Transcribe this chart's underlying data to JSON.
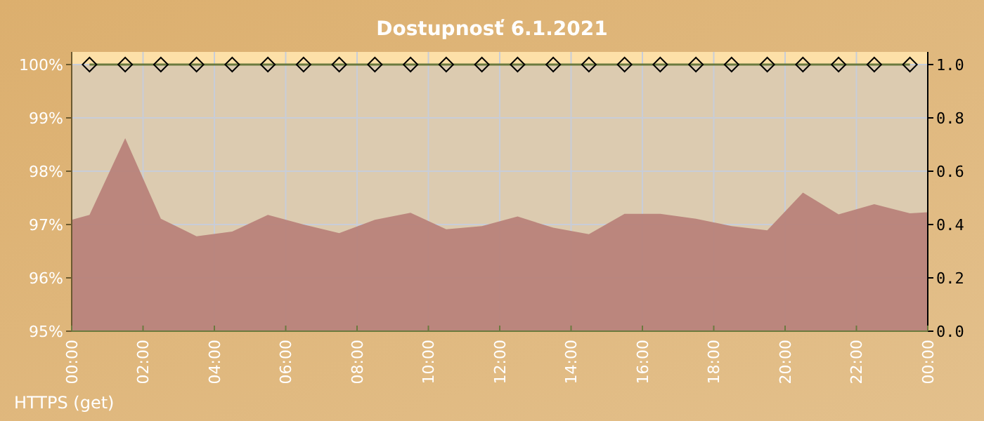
{
  "chart_data": {
    "type": "area",
    "title": "Dostupnosť 6.1.2021",
    "annotations": [
      "HTTPS (get)"
    ],
    "xlim": [
      0,
      24
    ],
    "xticks": [
      {
        "value": 0,
        "label": "00:00"
      },
      {
        "value": 2,
        "label": "02:00"
      },
      {
        "value": 4,
        "label": "04:00"
      },
      {
        "value": 6,
        "label": "06:00"
      },
      {
        "value": 8,
        "label": "08:00"
      },
      {
        "value": 10,
        "label": "10:00"
      },
      {
        "value": 12,
        "label": "12:00"
      },
      {
        "value": 14,
        "label": "14:00"
      },
      {
        "value": 16,
        "label": "16:00"
      },
      {
        "value": 18,
        "label": "18:00"
      },
      {
        "value": 20,
        "label": "20:00"
      },
      {
        "value": 22,
        "label": "22:00"
      },
      {
        "value": 24,
        "label": "00:00"
      }
    ],
    "ylim": [
      95,
      100
    ],
    "yticks": [
      {
        "value": 95,
        "label": "95%"
      },
      {
        "value": 96,
        "label": "96%"
      },
      {
        "value": 97,
        "label": "97%"
      },
      {
        "value": 98,
        "label": "98%"
      },
      {
        "value": 99,
        "label": "99%"
      },
      {
        "value": 100,
        "label": "100%"
      }
    ],
    "y2lim": [
      0,
      1
    ],
    "y2ticks": [
      {
        "value": 0,
        "label": "0.0"
      },
      {
        "value": 0.2,
        "label": "0.2"
      },
      {
        "value": 0.4,
        "label": "0.4"
      },
      {
        "value": 0.6,
        "label": "0.6"
      },
      {
        "value": 0.8,
        "label": "0.8"
      },
      {
        "value": 1,
        "label": "1.0"
      }
    ],
    "grid": true,
    "series": [
      {
        "color": "#b8827a",
        "x": [
          0,
          0.5,
          1.5,
          2.5,
          3.5,
          4.5,
          5.5,
          6.5,
          7.5,
          8.5,
          9.5,
          10.5,
          11.5,
          12.5,
          13.5,
          14.5,
          15.5,
          16.5,
          17.5,
          18.5,
          19.5,
          20.5,
          21.5,
          22.5,
          23.5,
          24
        ],
        "values": [
          97.09,
          97.18,
          98.62,
          97.11,
          96.78,
          96.87,
          97.18,
          97.0,
          96.84,
          97.09,
          97.22,
          96.91,
          96.97,
          97.15,
          96.94,
          96.82,
          97.2,
          97.2,
          97.11,
          96.97,
          96.89,
          97.6,
          97.19,
          97.38,
          97.21,
          97.23
        ]
      },
      {
        "type": "line",
        "axis": "y2",
        "color": "#6b7a3e",
        "marker": "diamond",
        "x": [
          0.5,
          1.5,
          2.5,
          3.5,
          4.5,
          5.5,
          6.5,
          7.5,
          8.5,
          9.5,
          10.5,
          11.5,
          12.5,
          13.5,
          14.5,
          15.5,
          16.5,
          17.5,
          18.5,
          19.5,
          20.5,
          21.5,
          22.5,
          23.5
        ],
        "values": [
          1,
          1,
          1,
          1,
          1,
          1,
          1,
          1,
          1,
          1,
          1,
          1,
          1,
          1,
          1,
          1,
          1,
          1,
          1,
          1,
          1,
          1,
          1,
          1
        ]
      }
    ]
  }
}
